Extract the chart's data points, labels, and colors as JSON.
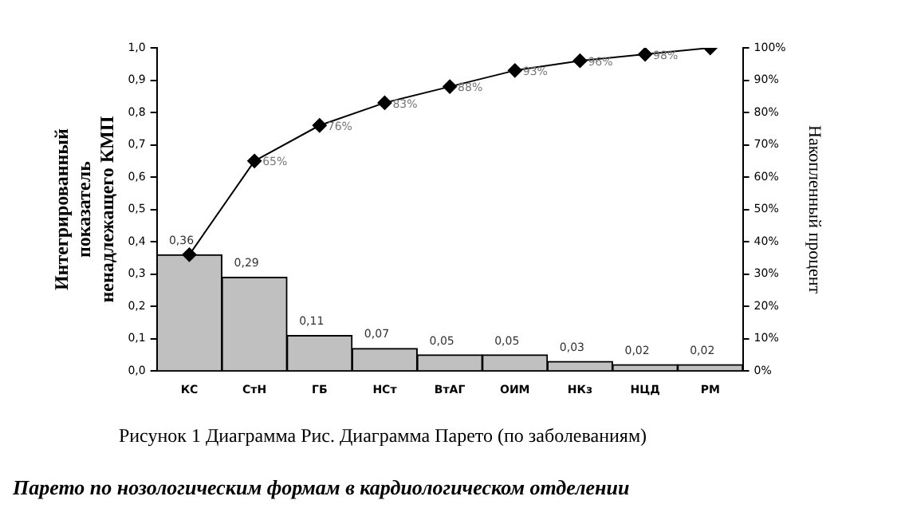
{
  "chart_data": {
    "type": "bar",
    "ylabel": "Интегрированный показатель ненадлежащего КМП",
    "y2label": "Накопленный процент",
    "categories": [
      "КС",
      "СтН",
      "ГБ",
      "НСт",
      "ВтАГ",
      "ОИМ",
      "НКз",
      "НЦД",
      "РМ"
    ],
    "series": [
      {
        "color": "#c0c0c0",
        "values": [
          0.36,
          0.29,
          0.11,
          0.07,
          0.05,
          0.05,
          0.03,
          0.02,
          0.02
        ],
        "value_labels": [
          "0,36",
          "0,29",
          "0,11",
          "0,07",
          "0,05",
          "0,05",
          "0,03",
          "0,02",
          "0,02"
        ]
      },
      {
        "type": "line",
        "axis": "y2",
        "color": "#000000",
        "marker": "diamond",
        "values": [
          36,
          65,
          76,
          83,
          88,
          93,
          96,
          98,
          100
        ],
        "value_labels": [
          null,
          "65%",
          "76%",
          "83%",
          "88%",
          "93%",
          "96%",
          "98%",
          null
        ]
      }
    ],
    "ylim": [
      0,
      1
    ],
    "yticks": [
      {
        "value": 0,
        "label": "0,0"
      },
      {
        "value": 0.1,
        "label": "0,1"
      },
      {
        "value": 0.2,
        "label": "0,2"
      },
      {
        "value": 0.3,
        "label": "0,3"
      },
      {
        "value": 0.4,
        "label": "0,4"
      },
      {
        "value": 0.5,
        "label": "0,5"
      },
      {
        "value": 0.6,
        "label": "0,6"
      },
      {
        "value": 0.7,
        "label": "0,7"
      },
      {
        "value": 0.8,
        "label": "0,8"
      },
      {
        "value": 0.9,
        "label": "0,9"
      },
      {
        "value": 1,
        "label": "1,0"
      }
    ],
    "y2lim": [
      0,
      100
    ],
    "y2ticks": [
      {
        "value": 0,
        "label": "0%"
      },
      {
        "value": 10,
        "label": "10%"
      },
      {
        "value": 20,
        "label": "20%"
      },
      {
        "value": 30,
        "label": "30%"
      },
      {
        "value": 40,
        "label": "40%"
      },
      {
        "value": 50,
        "label": "50%"
      },
      {
        "value": 60,
        "label": "60%"
      },
      {
        "value": 70,
        "label": "70%"
      },
      {
        "value": 80,
        "label": "80%"
      },
      {
        "value": 90,
        "label": "90%"
      },
      {
        "value": 100,
        "label": "100%"
      }
    ],
    "grid": false,
    "legend": false,
    "annotations": [
      "Рисунок 1 Диаграмма Рис. Диаграмма Парето (по заболеваниям)",
      "Парето по нозологическим формам в кардиологическом отделении"
    ]
  }
}
